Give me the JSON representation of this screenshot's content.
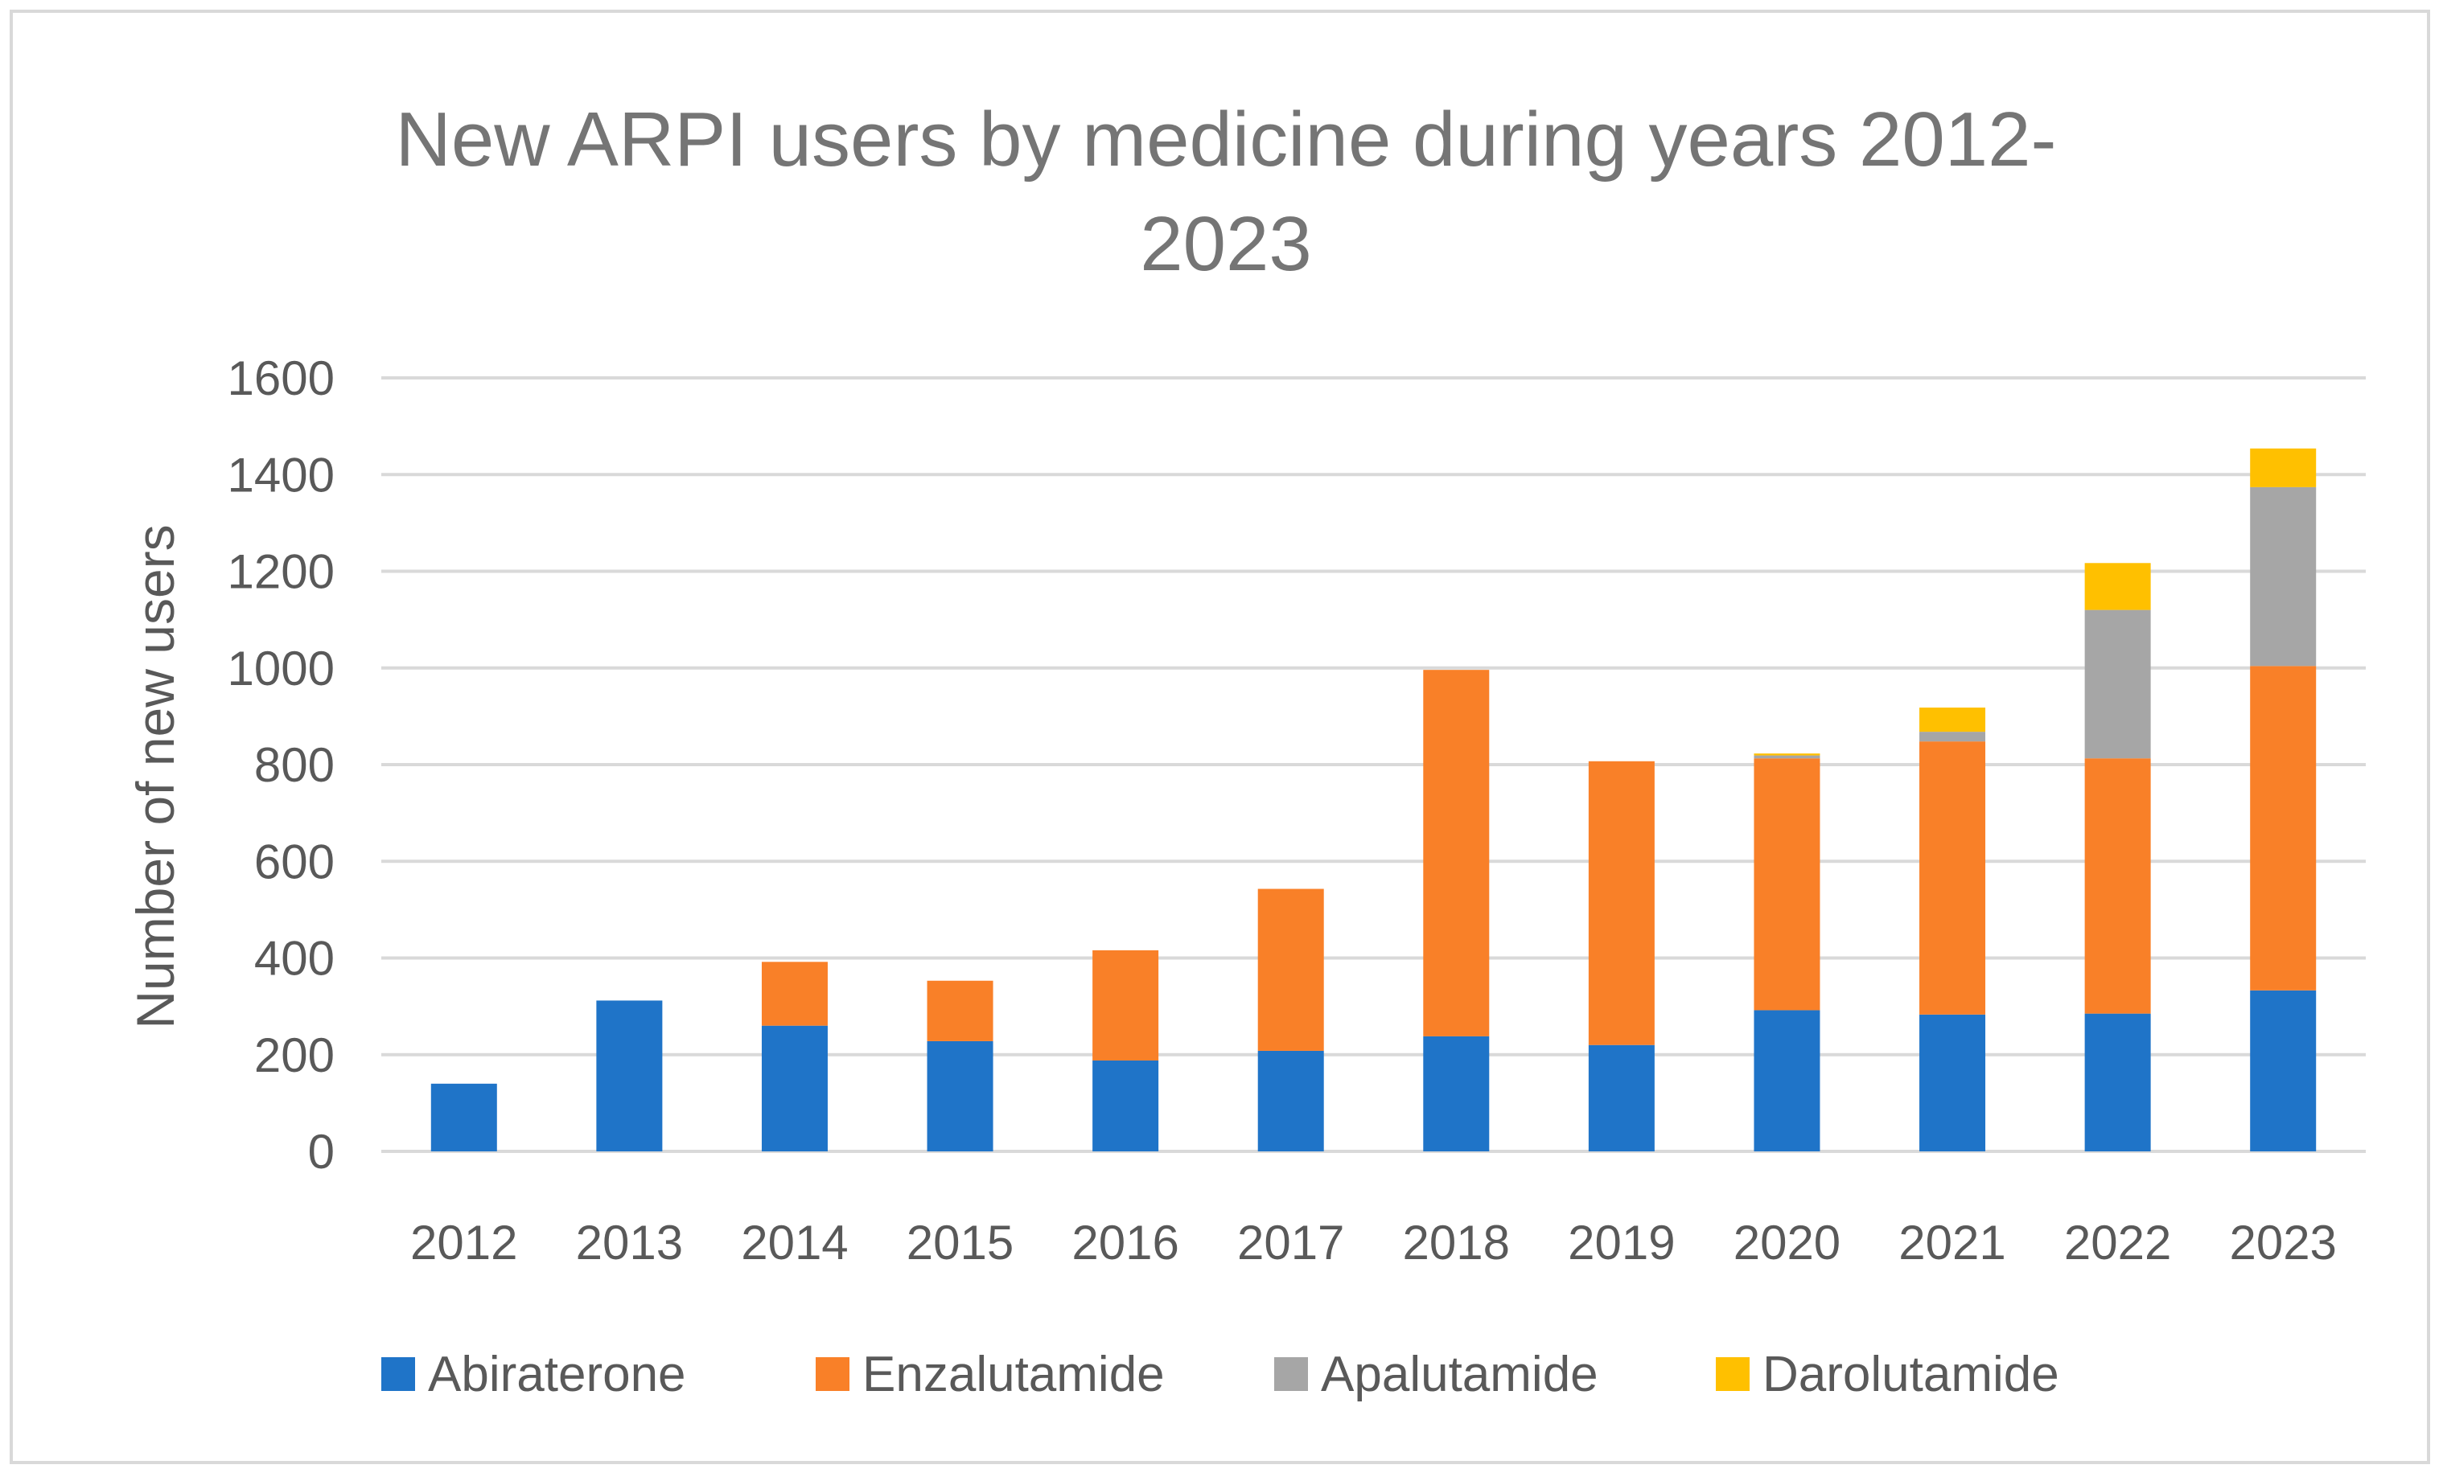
{
  "chart_data": {
    "type": "bar",
    "stacked": true,
    "title_lines": [
      "New ARPI users by medicine during years 2012-",
      "2023"
    ],
    "xlabel": "",
    "ylabel": "Number of new users",
    "ylim": [
      0,
      1600
    ],
    "yticks": [
      0,
      200,
      400,
      600,
      800,
      1000,
      1200,
      1400,
      1600
    ],
    "grid": true,
    "legend_position": "bottom",
    "categories": [
      "2012",
      "2013",
      "2014",
      "2015",
      "2016",
      "2017",
      "2018",
      "2019",
      "2020",
      "2021",
      "2022",
      "2023"
    ],
    "series": [
      {
        "name": "Abiraterone",
        "color": "#1f74c8",
        "values": [
          140,
          312,
          260,
          228,
          188,
          208,
          238,
          220,
          292,
          283,
          285,
          333
        ]
      },
      {
        "name": "Enzalutamide",
        "color": "#f98028",
        "values": [
          0,
          0,
          132,
          125,
          228,
          335,
          758,
          587,
          521,
          565,
          528,
          671
        ]
      },
      {
        "name": "Apalutamide",
        "color": "#a6a6a6",
        "values": [
          0,
          0,
          0,
          0,
          0,
          0,
          0,
          0,
          6,
          20,
          307,
          370
        ]
      },
      {
        "name": "Darolutamide",
        "color": "#ffc000",
        "values": [
          0,
          0,
          0,
          0,
          0,
          0,
          0,
          0,
          4,
          50,
          97,
          80
        ]
      }
    ]
  }
}
